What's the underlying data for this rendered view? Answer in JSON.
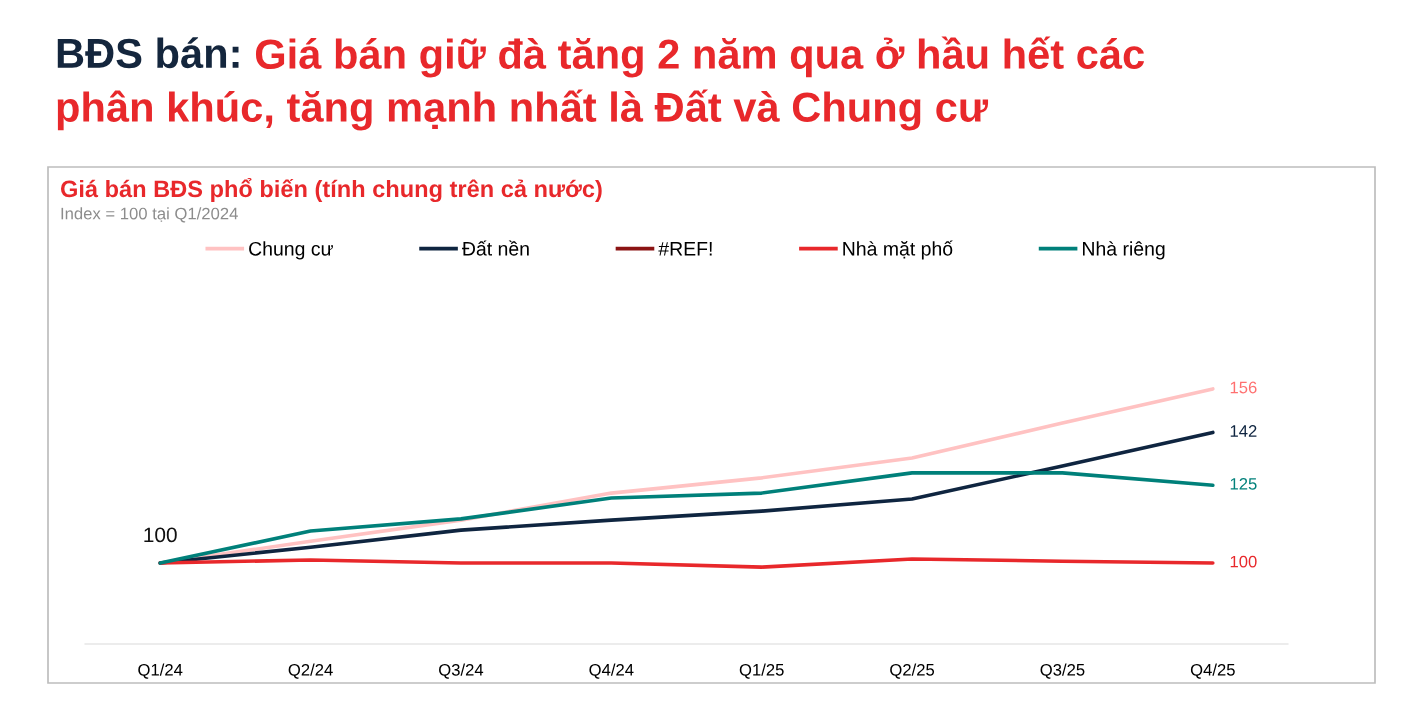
{
  "chart_data": {
    "type": "line",
    "title": "BĐS bán: Giá bán giữ đà tăng 2 năm qua ở hầu hết các\nphân khúc, tăng mạnh nhất là Đất và Chung cư",
    "subtitle": "Giá bán BĐS phổ biến (tính chung trên cả nước)",
    "annotations": [
      "Index = 100 tại Q1/2024"
    ],
    "categories": [
      "Q1/24",
      "Q2/24",
      "Q3/24",
      "Q4/24",
      "Q1/25",
      "Q2/25",
      "Q3/25",
      "Q4/25"
    ],
    "tick_labels": "x",
    "grid": false,
    "legend": "top",
    "marker": "none",
    "line_style": "solid",
    "series": [
      {
        "name": "Chung cư",
        "color": "#ffc2c2",
        "values": [
          100,
          107,
          113.8,
          122.5,
          127.4,
          133.8,
          145,
          156
        ],
        "value_labels": [
          null,
          null,
          null,
          null,
          null,
          null,
          null,
          "156"
        ]
      },
      {
        "name": "Đất nền",
        "color": "#0f2540",
        "values": [
          100,
          105.1,
          110.6,
          113.8,
          116.7,
          120.6,
          131.2,
          142
        ],
        "value_labels": [
          "100",
          null,
          null,
          null,
          null,
          null,
          null,
          "142"
        ]
      },
      {
        "name": "#REF!",
        "color": "#8b1414",
        "values": [
          null,
          null,
          null,
          null,
          null,
          null,
          null,
          null
        ]
      },
      {
        "name": "Nhà mặt phố",
        "color": "#e8282b",
        "values": [
          100,
          101,
          100,
          100,
          98.7,
          101.3,
          100.6,
          100
        ],
        "value_labels": [
          null,
          null,
          null,
          null,
          null,
          null,
          null,
          "100"
        ]
      },
      {
        "name": "Nhà riêng",
        "color": "#00807a",
        "values": [
          100,
          110.3,
          114.2,
          120.9,
          122.5,
          129,
          129,
          125
        ],
        "value_labels": [
          null,
          null,
          null,
          null,
          null,
          null,
          null,
          "125"
        ]
      }
    ]
  }
}
